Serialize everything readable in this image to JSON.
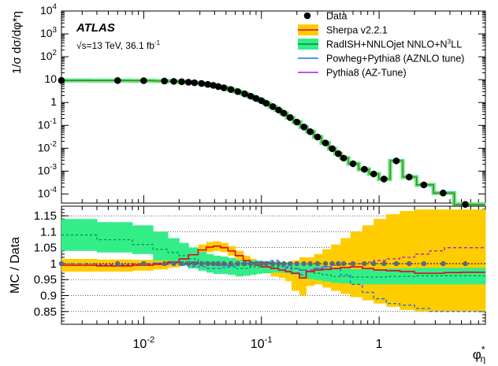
{
  "experiment": "ATLAS",
  "energy_text": "√s=13 TeV, 36.1 fb",
  "energy_sup": "-1",
  "legend": [
    {
      "label": "Data",
      "style": "marker",
      "color": "#000000"
    },
    {
      "label": "Sherpa v2.2.1",
      "style": "band",
      "color": "#ffcc00",
      "line": "#e8001c"
    },
    {
      "label": "RadISH+NNLOjet NNLO+N",
      "sup": "3",
      "label_tail": "LL",
      "style": "band",
      "color": "#33ee88",
      "line": "#008844"
    },
    {
      "label": "Powheg+Pythia8 (AZNLO tune)",
      "style": "line",
      "color": "#1f6fe0"
    },
    {
      "label": "Pythia8 (AZ-Tune)",
      "style": "line",
      "color": "#a020e0"
    }
  ],
  "colors": {
    "sherpa_band": "#ffcc00",
    "sherpa_line": "#e8001c",
    "radish_band": "#33ee88",
    "radish_line": "#008844",
    "powheg": "#1f6fe0",
    "pythia": "#a020e0",
    "data": "#000000",
    "ratio_data": "#5c6a7a"
  },
  "chart_data": [
    {
      "type": "line",
      "panel": "upper",
      "ylabel": "1/σ dσ/dφ*η",
      "xscale": "log",
      "yscale": "log",
      "xlim": [
        0.002,
        8
      ],
      "ylim": [
        4e-05,
        10000
      ],
      "y_ticks": [
        {
          "v": 0.0001,
          "label": "10",
          "sup": "-4"
        },
        {
          "v": 0.001,
          "label": "10",
          "sup": "-3"
        },
        {
          "v": 0.01,
          "label": "10",
          "sup": "-2"
        },
        {
          "v": 0.1,
          "label": "10",
          "sup": "-1"
        },
        {
          "v": 1,
          "label": "1"
        },
        {
          "v": 10,
          "label": "10"
        },
        {
          "v": 100,
          "label": "10",
          "sup": "2"
        },
        {
          "v": 1000,
          "label": "10",
          "sup": "3"
        },
        {
          "v": 10000,
          "label": "10",
          "sup": "4"
        }
      ],
      "series": [
        {
          "name": "Data",
          "x": [
            0.002,
            0.006,
            0.01,
            0.015,
            0.018,
            0.021,
            0.024,
            0.027,
            0.031,
            0.035,
            0.039,
            0.043,
            0.048,
            0.055,
            0.063,
            0.072,
            0.081,
            0.09,
            0.1,
            0.11,
            0.125,
            0.14,
            0.155,
            0.175,
            0.2,
            0.23,
            0.26,
            0.3,
            0.35,
            0.4,
            0.45,
            0.5,
            0.6,
            0.75,
            0.9,
            1.1,
            1.4,
            1.8,
            2.4,
            3.5,
            5.4
          ],
          "y": [
            9.2,
            9.1,
            9.0,
            8.7,
            8.4,
            8.1,
            7.7,
            7.3,
            6.8,
            6.2,
            5.6,
            5.0,
            4.4,
            3.7,
            3.0,
            2.4,
            1.9,
            1.5,
            1.2,
            0.92,
            0.66,
            0.47,
            0.34,
            0.22,
            0.14,
            0.085,
            0.053,
            0.031,
            0.017,
            0.0095,
            0.0058,
            0.0037,
            0.0021,
            0.0012,
            0.00075,
            0.00045,
            0.0028,
            0.00055,
            0.00025,
            0.00011,
            3.5e-05
          ]
        }
      ]
    },
    {
      "type": "line",
      "panel": "lower",
      "ylabel": "MC / Data",
      "xlabel": "φ*η",
      "xscale": "log",
      "xlim": [
        0.002,
        8
      ],
      "ylim": [
        0.81,
        1.18
      ],
      "y_ticks": [
        0.85,
        0.9,
        0.95,
        1,
        1.05,
        1.1,
        1.15
      ],
      "x_ticks": [
        {
          "v": 0.01,
          "label": "10",
          "sup": "-2"
        },
        {
          "v": 0.1,
          "label": "10",
          "sup": "-1"
        },
        {
          "v": 1,
          "label": "1"
        }
      ],
      "bin_edges": [
        0.002,
        0.004,
        0.008,
        0.012,
        0.016,
        0.02,
        0.024,
        0.029,
        0.034,
        0.039,
        0.045,
        0.052,
        0.06,
        0.07,
        0.08,
        0.09,
        0.1,
        0.12,
        0.14,
        0.16,
        0.18,
        0.21,
        0.24,
        0.28,
        0.33,
        0.39,
        0.47,
        0.57,
        0.72,
        0.9,
        1.15,
        1.5,
        2.0,
        2.7,
        3.6,
        5.0,
        8.0
      ],
      "series": [
        {
          "name": "Sherpa v2.2.1",
          "values": [
            0.995,
            0.993,
            0.995,
            0.998,
            1.005,
            1.015,
            1.028,
            1.043,
            1.052,
            1.055,
            1.05,
            1.04,
            1.025,
            1.01,
            1.0,
            0.995,
            0.99,
            0.985,
            0.98,
            0.975,
            0.97,
            0.955,
            0.975,
            0.98,
            0.982,
            0.985,
            0.988,
            0.99,
            0.985,
            0.98,
            0.978,
            0.975,
            0.97,
            0.97,
            0.972,
            0.973
          ],
          "band_lo": [
            0.975,
            0.975,
            0.978,
            0.982,
            0.988,
            0.998,
            1.01,
            1.025,
            1.036,
            1.04,
            1.036,
            1.025,
            1.01,
            0.995,
            0.985,
            0.98,
            0.97,
            0.96,
            0.955,
            0.945,
            0.915,
            0.9,
            0.93,
            0.935,
            0.925,
            0.915,
            0.905,
            0.895,
            0.885,
            0.875,
            0.865,
            0.855,
            0.85,
            0.85,
            0.85,
            0.85
          ],
          "band_hi": [
            1.015,
            1.013,
            1.012,
            1.014,
            1.022,
            1.032,
            1.046,
            1.06,
            1.068,
            1.07,
            1.065,
            1.055,
            1.04,
            1.025,
            1.015,
            1.01,
            1.005,
            1.0,
            1.0,
            1.0,
            1.01,
            1.02,
            1.02,
            1.03,
            1.045,
            1.06,
            1.08,
            1.1,
            1.12,
            1.14,
            1.155,
            1.165,
            1.17,
            1.17,
            1.17,
            1.17
          ]
        },
        {
          "name": "RadISH+NNLOjet NNLO+N3LL",
          "values": [
            1.09,
            1.075,
            1.06,
            1.045,
            1.035,
            1.025,
            1.015,
            1.005,
            1.0,
            0.995,
            0.995,
            0.99,
            0.985,
            0.985,
            0.99,
            0.99,
            0.99,
            0.99,
            0.99,
            0.99,
            0.985,
            0.98,
            0.975,
            0.97,
            0.965,
            0.96,
            0.96,
            0.958,
            0.958,
            0.958,
            0.96,
            0.96,
            0.962,
            0.962,
            0.962,
            0.962
          ],
          "band_lo": [
            1.04,
            1.035,
            1.03,
            1.01,
            1.0,
            0.995,
            0.985,
            0.978,
            0.972,
            0.968,
            0.968,
            0.965,
            0.96,
            0.962,
            0.965,
            0.968,
            0.97,
            0.972,
            0.972,
            0.97,
            0.965,
            0.958,
            0.952,
            0.948,
            0.944,
            0.94,
            0.938,
            0.936,
            0.935,
            0.935,
            0.935,
            0.935,
            0.935,
            0.935,
            0.935,
            0.935
          ],
          "band_hi": [
            1.14,
            1.13,
            1.12,
            1.1,
            1.08,
            1.065,
            1.05,
            1.038,
            1.03,
            1.025,
            1.022,
            1.018,
            1.012,
            1.01,
            1.01,
            1.01,
            1.008,
            1.006,
            1.004,
            1.004,
            1.002,
            1.0,
            0.998,
            0.995,
            0.99,
            0.985,
            0.985,
            0.983,
            0.983,
            0.983,
            0.985,
            0.985,
            0.987,
            0.987,
            0.987,
            0.987
          ]
        },
        {
          "name": "Powheg+Pythia8 (AZNLO tune)",
          "values": [
            1.0,
            0.995,
            0.998,
            1.002,
            1.0,
            0.995,
            0.99,
            0.99,
            0.985,
            0.985,
            0.988,
            0.99,
            0.995,
            1.0,
            1.005,
            1.005,
            1.005,
            1.01,
            1.0,
            0.985,
            0.97,
            0.965,
            0.975,
            0.985,
            0.99,
            0.985,
            0.965,
            0.935,
            0.91,
            0.89,
            0.875,
            0.87,
            0.86,
            0.85,
            0.85,
            0.85
          ]
        },
        {
          "name": "Pythia8 (AZ-Tune)",
          "values": [
            0.995,
            0.998,
            1.0,
            1.002,
            1.003,
            1.005,
            1.005,
            1.002,
            1.0,
            0.998,
            0.995,
            0.995,
            0.998,
            1.0,
            1.002,
            1.003,
            1.003,
            1.0,
            0.995,
            0.99,
            0.985,
            0.98,
            0.98,
            0.985,
            0.99,
            0.995,
            0.998,
            1.0,
            1.005,
            1.01,
            1.015,
            1.02,
            1.03,
            1.04,
            1.05,
            1.05
          ]
        },
        {
          "name": "Data",
          "x": [
            0.002,
            0.006,
            0.01,
            0.015,
            0.018,
            0.021,
            0.024,
            0.027,
            0.031,
            0.035,
            0.039,
            0.043,
            0.048,
            0.055,
            0.063,
            0.072,
            0.081,
            0.09,
            0.1,
            0.11,
            0.125,
            0.14,
            0.155,
            0.175,
            0.2,
            0.23,
            0.26,
            0.3,
            0.35,
            0.4,
            0.45,
            0.5,
            0.6,
            0.75,
            0.9,
            1.1,
            1.4,
            1.8,
            2.4,
            3.5,
            5.4
          ],
          "values": [
            1,
            1,
            1,
            1,
            1,
            1,
            1,
            1,
            1,
            1,
            1,
            1,
            1,
            1,
            1,
            1,
            1,
            1,
            1,
            1,
            1,
            1,
            1,
            1,
            1,
            1,
            1,
            1,
            1,
            1,
            1,
            1,
            1,
            1,
            1,
            1,
            1,
            1,
            1,
            1,
            1
          ]
        }
      ]
    }
  ]
}
